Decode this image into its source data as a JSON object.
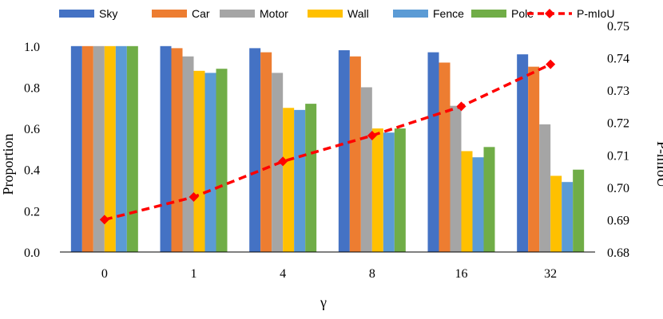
{
  "chart_data": {
    "type": "bar",
    "categories": [
      "0",
      "1",
      "4",
      "8",
      "16",
      "32"
    ],
    "xlabel": "γ",
    "ylabel": "Proportion",
    "y2label": "P-mIoU",
    "ylim": [
      0.0,
      1.1
    ],
    "yticks": [
      "0.0",
      "0.2",
      "0.4",
      "0.6",
      "0.8",
      "1.0"
    ],
    "y2lim": [
      0.68,
      0.75
    ],
    "y2ticks": [
      "0.68",
      "0.69",
      "0.70",
      "0.71",
      "0.72",
      "0.73",
      "0.74",
      "0.75"
    ],
    "grid": false,
    "legend_position": "top",
    "series": [
      {
        "name": "Sky",
        "color": "#4472C4",
        "values": [
          1.0,
          1.0,
          0.99,
          0.98,
          0.97,
          0.96
        ]
      },
      {
        "name": "Car",
        "color": "#ED7D31",
        "values": [
          1.0,
          0.99,
          0.97,
          0.95,
          0.92,
          0.9
        ]
      },
      {
        "name": "Motor",
        "color": "#A5A5A5",
        "values": [
          1.0,
          0.95,
          0.87,
          0.8,
          0.71,
          0.62
        ]
      },
      {
        "name": "Wall",
        "color": "#FFC000",
        "values": [
          1.0,
          0.88,
          0.7,
          0.6,
          0.49,
          0.37
        ]
      },
      {
        "name": "Fence",
        "color": "#5B9BD5",
        "values": [
          1.0,
          0.87,
          0.69,
          0.58,
          0.46,
          0.34
        ]
      },
      {
        "name": "Pole",
        "color": "#70AD47",
        "values": [
          1.0,
          0.89,
          0.72,
          0.6,
          0.51,
          0.4
        ]
      }
    ],
    "line_series": {
      "name": "P-mIoU",
      "color": "#FF0000",
      "axis": "secondary",
      "values": [
        0.69,
        0.697,
        0.708,
        0.716,
        0.725,
        0.738
      ]
    }
  }
}
